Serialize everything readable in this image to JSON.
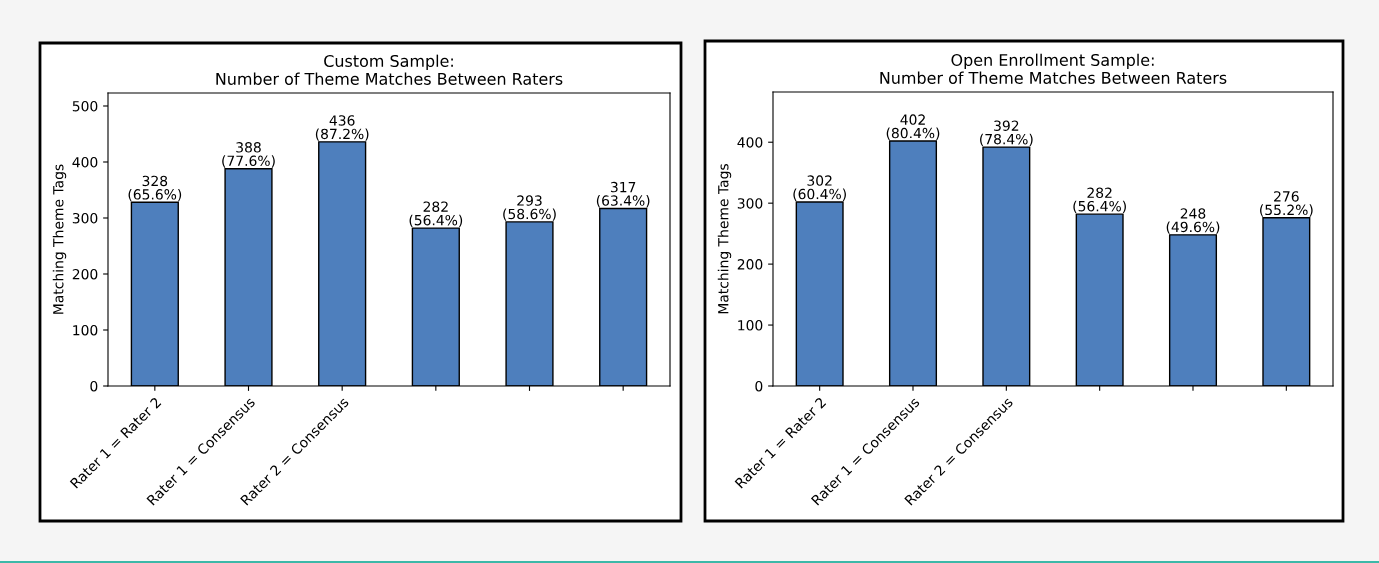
{
  "chart_data": [
    {
      "type": "bar",
      "title": "Custom Sample:\nNumber of Theme Matches Between Raters",
      "ylabel": "Matching Theme Tags",
      "categories": [
        "Rater 1 = Rater 2",
        "Rater 1 = Consensus",
        "Rater 2 = Consensus",
        null,
        null,
        null
      ],
      "values": [
        328,
        388,
        436,
        282,
        293,
        317
      ],
      "color": "#4e7fbd",
      "value_labels": [
        "328\n(65.6%)",
        "388\n(77.6%)",
        "436\n(87.2%)",
        "282\n(56.4%)",
        "293\n(58.6%)",
        "317\n(63.4%)"
      ],
      "ylim": [
        0,
        523.2
      ],
      "yticks": [
        0,
        100,
        200,
        300,
        400,
        500
      ],
      "grid": false,
      "legend": false
    },
    {
      "type": "bar",
      "title": "Open Enrollment Sample:\nNumber of Theme Matches Between Raters",
      "ylabel": "Matching Theme Tags",
      "categories": [
        "Rater 1 = Rater 2",
        "Rater 1 = Consensus",
        "Rater 2 = Consensus",
        null,
        null,
        null
      ],
      "values": [
        302,
        402,
        392,
        282,
        248,
        276
      ],
      "color": "#4e7fbd",
      "value_labels": [
        "302\n(60.4%)",
        "402\n(80.4%)",
        "392\n(78.4%)",
        "282\n(56.4%)",
        "248\n(49.6%)",
        "276\n(55.2%)"
      ],
      "ylim": [
        0,
        482.4
      ],
      "yticks": [
        0,
        100,
        200,
        300,
        400
      ],
      "grid": false,
      "legend": false
    }
  ]
}
